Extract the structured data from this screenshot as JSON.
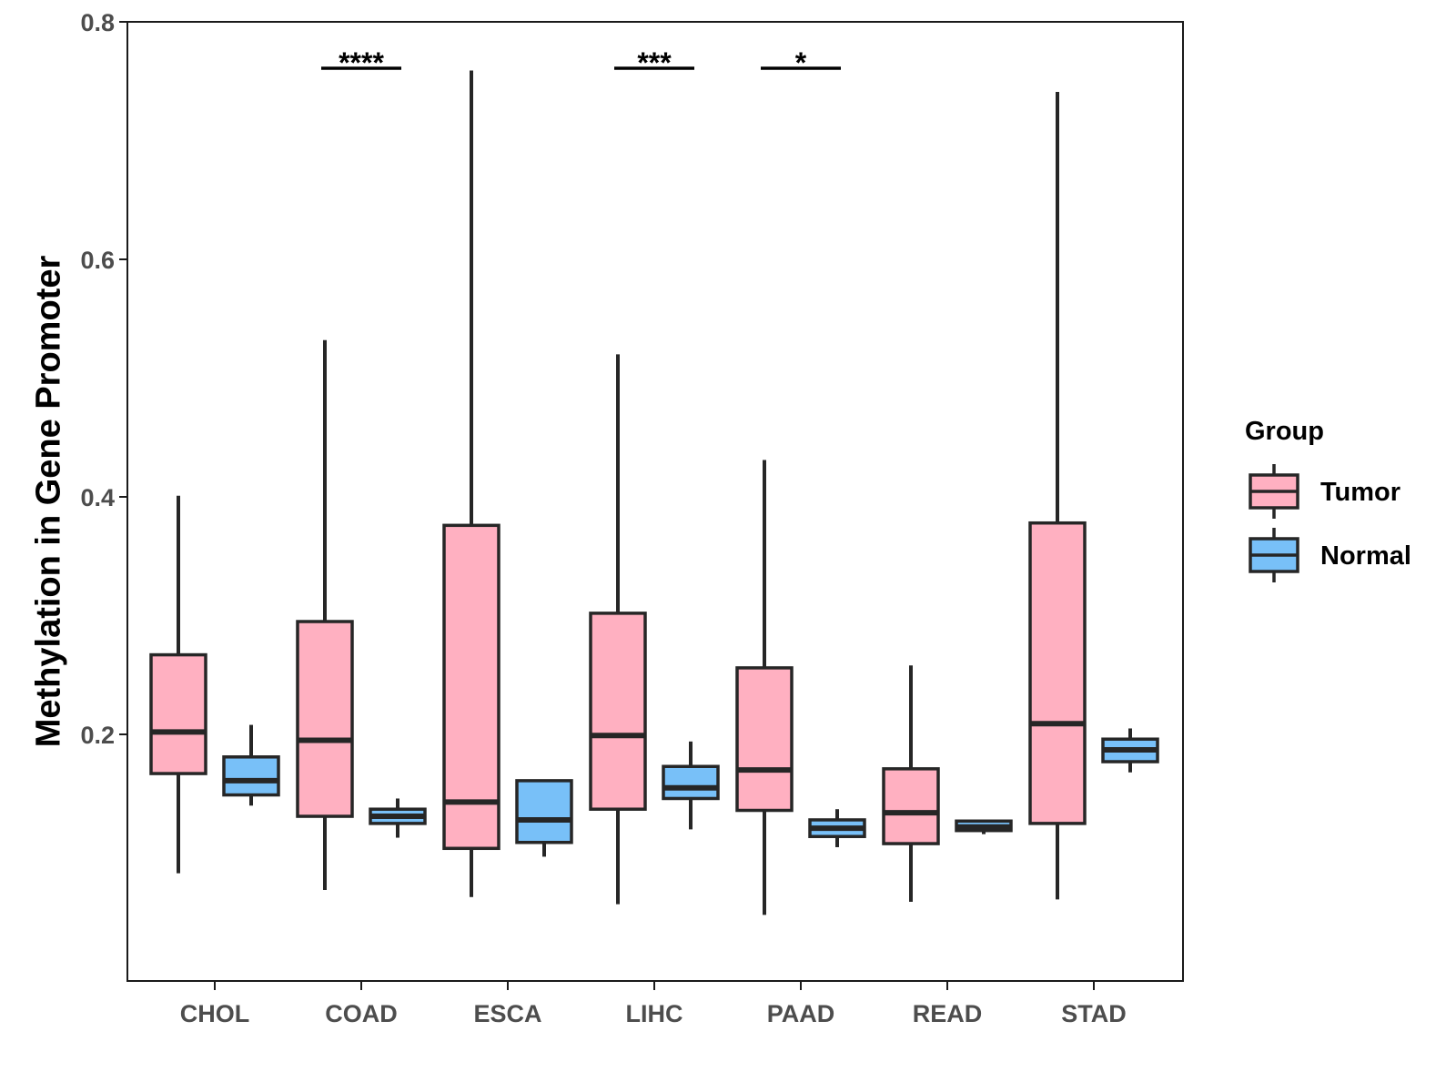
{
  "chart_data": {
    "type": "boxplot",
    "title": "",
    "xlabel": "",
    "ylabel": "Methylation in Gene Promoter",
    "ylim": [
      0.0,
      0.8
    ],
    "yticks": [
      0.2,
      0.4,
      0.6,
      0.8
    ],
    "ytick_labels": [
      "0.2",
      "0.4",
      "0.6",
      "0.8"
    ],
    "categories": [
      "CHOL",
      "COAD",
      "ESCA",
      "LIHC",
      "PAAD",
      "READ",
      "STAD"
    ],
    "grid": false,
    "legend": {
      "title": "Group",
      "position": "right",
      "entries": [
        {
          "name": "Tumor",
          "color": "#ffb0c1"
        },
        {
          "name": "Normal",
          "color": "#78c0f8"
        }
      ]
    },
    "series": [
      {
        "name": "Tumor",
        "color": "#ffb0c1",
        "boxes": [
          {
            "category": "CHOL",
            "min": 0.083,
            "q1": 0.167,
            "median": 0.202,
            "q3": 0.267,
            "max": 0.401
          },
          {
            "category": "COAD",
            "min": 0.069,
            "q1": 0.131,
            "median": 0.195,
            "q3": 0.295,
            "max": 0.532
          },
          {
            "category": "ESCA",
            "min": 0.063,
            "q1": 0.104,
            "median": 0.143,
            "q3": 0.376,
            "max": 0.759
          },
          {
            "category": "LIHC",
            "min": 0.057,
            "q1": 0.137,
            "median": 0.199,
            "q3": 0.302,
            "max": 0.52
          },
          {
            "category": "PAAD",
            "min": 0.048,
            "q1": 0.136,
            "median": 0.17,
            "q3": 0.256,
            "max": 0.431
          },
          {
            "category": "READ",
            "min": 0.059,
            "q1": 0.108,
            "median": 0.134,
            "q3": 0.171,
            "max": 0.258
          },
          {
            "category": "STAD",
            "min": 0.061,
            "q1": 0.125,
            "median": 0.209,
            "q3": 0.378,
            "max": 0.741
          }
        ]
      },
      {
        "name": "Normal",
        "color": "#78c0f8",
        "boxes": [
          {
            "category": "CHOL",
            "min": 0.14,
            "q1": 0.149,
            "median": 0.161,
            "q3": 0.181,
            "max": 0.208
          },
          {
            "category": "COAD",
            "min": 0.113,
            "q1": 0.125,
            "median": 0.131,
            "q3": 0.137,
            "max": 0.146
          },
          {
            "category": "ESCA",
            "min": 0.097,
            "q1": 0.109,
            "median": 0.128,
            "q3": 0.161,
            "max": 0.161
          },
          {
            "category": "LIHC",
            "min": 0.12,
            "q1": 0.146,
            "median": 0.155,
            "q3": 0.173,
            "max": 0.194
          },
          {
            "category": "PAAD",
            "min": 0.105,
            "q1": 0.114,
            "median": 0.121,
            "q3": 0.128,
            "max": 0.137
          },
          {
            "category": "READ",
            "min": 0.116,
            "q1": 0.119,
            "median": 0.122,
            "q3": 0.127,
            "max": 0.128
          },
          {
            "category": "STAD",
            "min": 0.168,
            "q1": 0.177,
            "median": 0.187,
            "q3": 0.196,
            "max": 0.205
          }
        ]
      }
    ],
    "annotations": [
      {
        "category": "COAD",
        "text": "****"
      },
      {
        "category": "LIHC",
        "text": "***"
      },
      {
        "category": "PAAD",
        "text": "*"
      }
    ]
  }
}
